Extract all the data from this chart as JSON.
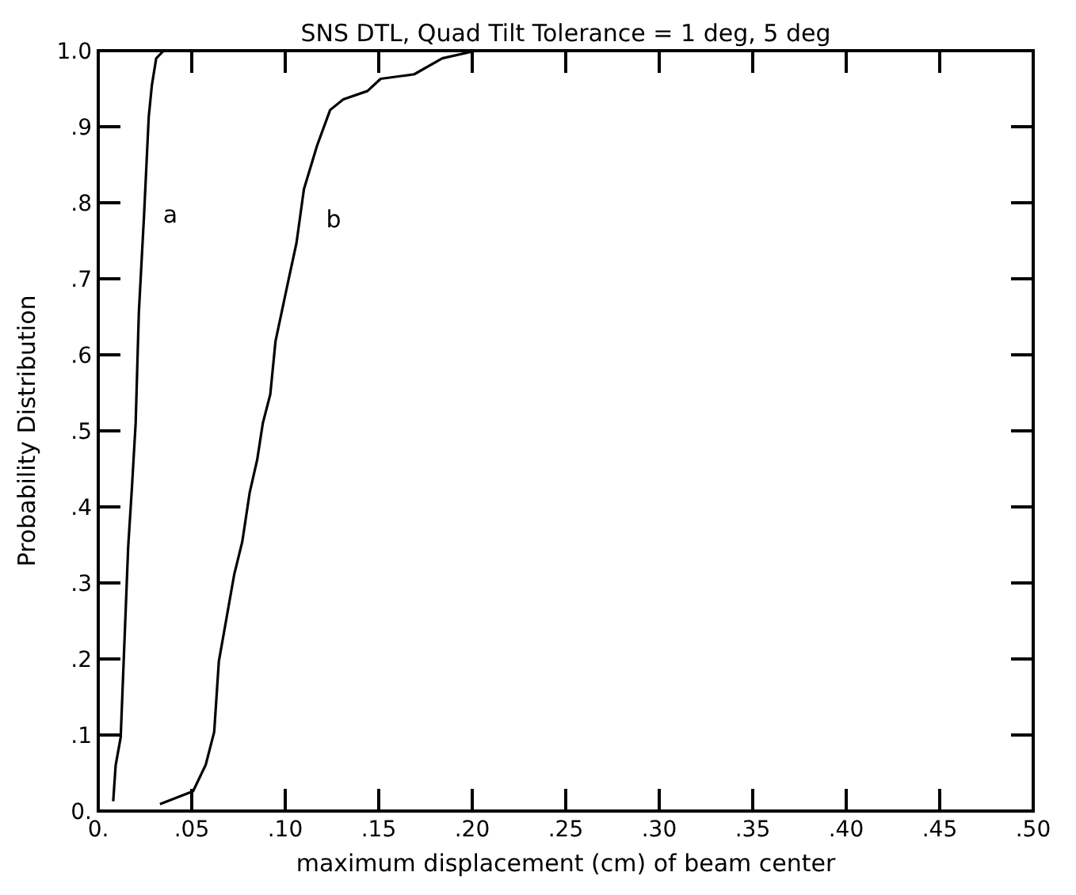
{
  "chart_data": {
    "type": "line",
    "title": "SNS DTL, Quad Tilt Tolerance = 1 deg, 5 deg",
    "xlabel": "maximum displacement (cm) of beam center",
    "ylabel": "Probability Distribution",
    "xlim": [
      0,
      0.5
    ],
    "ylim": [
      0,
      1
    ],
    "xticks": [
      {
        "value": 0,
        "label": "0."
      },
      {
        "value": 0.05,
        "label": ".05"
      },
      {
        "value": 0.1,
        "label": ".10"
      },
      {
        "value": 0.15,
        "label": ".15"
      },
      {
        "value": 0.2,
        "label": ".20"
      },
      {
        "value": 0.25,
        "label": ".25"
      },
      {
        "value": 0.3,
        "label": ".30"
      },
      {
        "value": 0.35,
        "label": ".35"
      },
      {
        "value": 0.4,
        "label": ".40"
      },
      {
        "value": 0.45,
        "label": ".45"
      },
      {
        "value": 0.5,
        "label": ".50"
      }
    ],
    "yticks": [
      {
        "value": 0,
        "label": "0."
      },
      {
        "value": 0.1,
        "label": ".1"
      },
      {
        "value": 0.2,
        "label": ".2"
      },
      {
        "value": 0.3,
        "label": ".3"
      },
      {
        "value": 0.4,
        "label": ".4"
      },
      {
        "value": 0.5,
        "label": ".5"
      },
      {
        "value": 0.6,
        "label": ".6"
      },
      {
        "value": 0.7,
        "label": ".7"
      },
      {
        "value": 0.8,
        "label": ".8"
      },
      {
        "value": 0.9,
        "label": ".9"
      },
      {
        "value": 1,
        "label": "1.0"
      }
    ],
    "grid": false,
    "marker": "none",
    "line_style": "solid",
    "series": [
      {
        "name": "a",
        "color": "#000000",
        "x": [
          0.008,
          0.0093,
          0.012,
          0.016,
          0.018,
          0.02,
          0.0217,
          0.0245,
          0.027,
          0.0287,
          0.031,
          0.035
        ],
        "values": [
          0.013,
          0.06,
          0.097,
          0.347,
          0.425,
          0.51,
          0.655,
          0.784,
          0.913,
          0.955,
          0.99,
          1.0
        ]
      },
      {
        "name": "b",
        "color": "#000000",
        "x": [
          0.033,
          0.0507,
          0.0575,
          0.062,
          0.0645,
          0.0686,
          0.0727,
          0.077,
          0.081,
          0.085,
          0.088,
          0.092,
          0.0948,
          0.1017,
          0.106,
          0.11,
          0.117,
          0.124,
          0.131,
          0.144,
          0.151,
          0.169,
          0.184,
          0.202,
          0.215
        ],
        "values": [
          0.009,
          0.026,
          0.061,
          0.104,
          0.197,
          0.254,
          0.311,
          0.354,
          0.419,
          0.462,
          0.51,
          0.548,
          0.618,
          0.698,
          0.747,
          0.818,
          0.875,
          0.922,
          0.936,
          0.947,
          0.963,
          0.969,
          0.99,
          1.0,
          1.0
        ]
      }
    ]
  }
}
